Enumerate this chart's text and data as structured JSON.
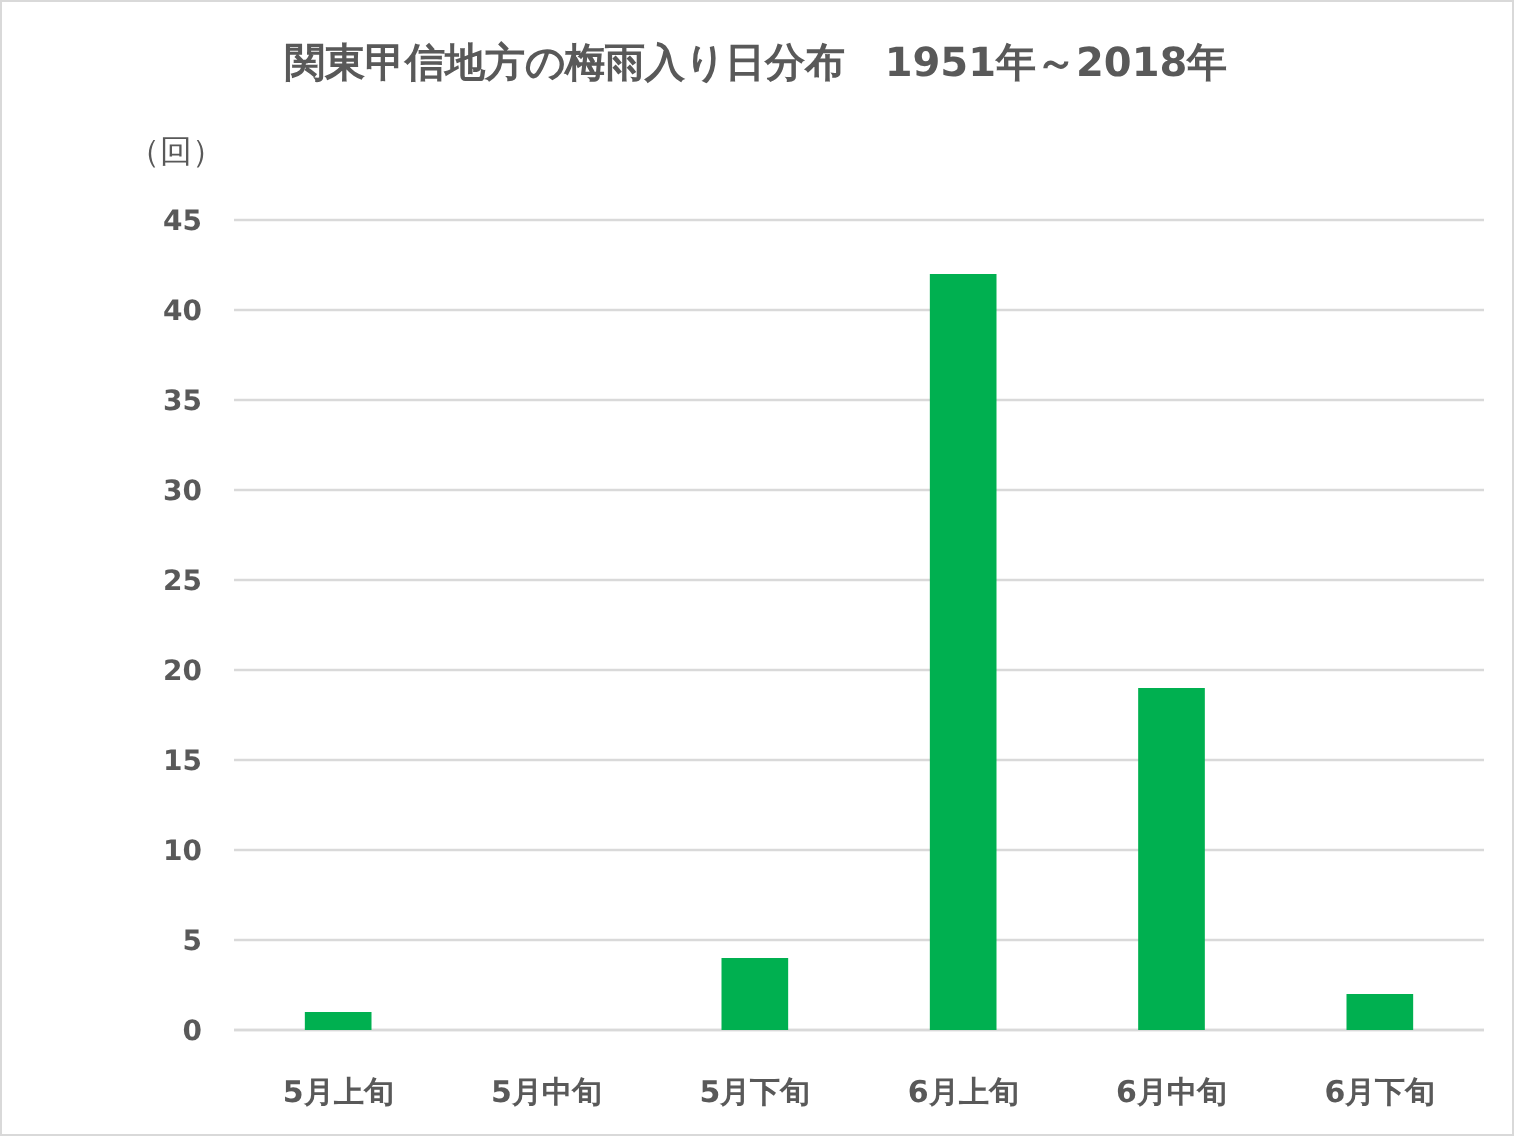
{
  "chart_data": {
    "type": "bar",
    "title": "関東甲信地方の梅雨入り日分布　1951年～2018年",
    "ylabel": "（回）",
    "categories": [
      "5月上旬",
      "5月中旬",
      "5月下旬",
      "6月上旬",
      "6月中旬",
      "6月下旬"
    ],
    "values": [
      1,
      0,
      4,
      42,
      19,
      2
    ],
    "color": "#00b050",
    "ylim": [
      0,
      45
    ],
    "yticks": [
      0,
      5,
      10,
      15,
      20,
      25,
      30,
      35,
      40,
      45
    ],
    "grid": "y"
  }
}
